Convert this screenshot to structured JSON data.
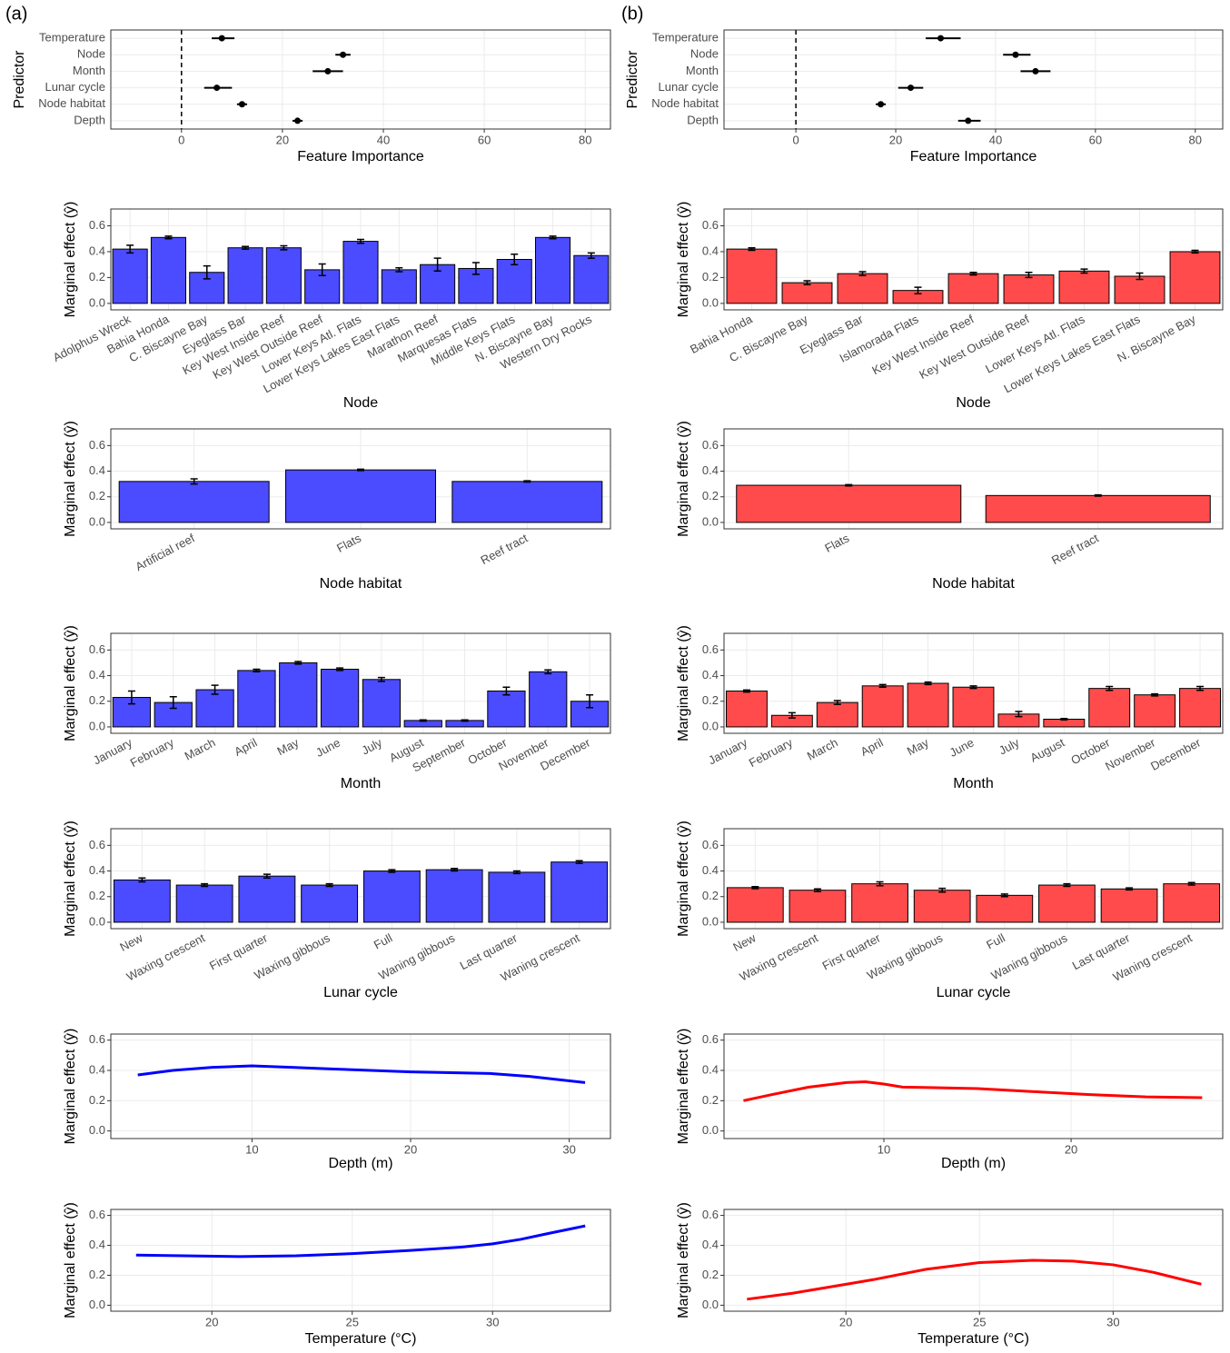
{
  "panel_labels": [
    "(a)",
    "(b)"
  ],
  "chart_data": [
    {
      "type": "dotplot",
      "x_label": "Feature Importance",
      "y_label": "Predictor",
      "categories": [
        "Temperature",
        "Node",
        "Month",
        "Lunar cycle",
        "Node habitat",
        "Depth"
      ],
      "values": [
        8,
        32,
        29,
        7,
        12,
        23
      ],
      "lower": [
        6,
        30.5,
        26,
        4.5,
        11,
        22
      ],
      "upper": [
        10.5,
        33.5,
        32,
        10,
        13,
        24
      ],
      "color": "#000000",
      "xlim": [
        -14,
        85
      ],
      "xticks": [
        0,
        20,
        40,
        60,
        80
      ],
      "reference_line": 0,
      "grid": true
    },
    {
      "type": "bar",
      "x_label": "Node",
      "y_label": "Marginal effect (ŷ)",
      "categories": [
        "Adolphus Wreck",
        "Bahia Honda",
        "C. Biscayne Bay",
        "Eyeglass Bar",
        "Key West Inside Reef",
        "Key West Outside Reef",
        "Lower Keys Atl. Flats",
        "Lower Keys Lakes East Flats",
        "Marathon Reef",
        "Marquesas Flats",
        "Middle Keys Flats",
        "N. Biscayne Bay",
        "Western Dry Rocks"
      ],
      "values": [
        0.42,
        0.51,
        0.24,
        0.43,
        0.43,
        0.26,
        0.48,
        0.26,
        0.3,
        0.27,
        0.34,
        0.51,
        0.37
      ],
      "errors": [
        0.03,
        0.01,
        0.05,
        0.01,
        0.015,
        0.045,
        0.015,
        0.015,
        0.05,
        0.045,
        0.04,
        0.01,
        0.02
      ],
      "color": "#4b4bff",
      "ylim": [
        -0.05,
        0.73
      ],
      "yticks": [
        {
          "value": 0,
          "label": "0.0"
        },
        0.2,
        0.4,
        0.6
      ],
      "grid": true
    },
    {
      "type": "bar",
      "x_label": "Node habitat",
      "y_label": "Marginal effect (ŷ)",
      "categories": [
        "Artificial reef",
        "Flats",
        "Reef tract"
      ],
      "values": [
        0.32,
        0.41,
        0.32
      ],
      "errors": [
        0.02,
        0.005,
        0.005
      ],
      "color": "#4b4bff",
      "ylim": [
        -0.05,
        0.73
      ],
      "yticks": [
        {
          "value": 0,
          "label": "0.0"
        },
        0.2,
        0.4,
        0.6
      ],
      "grid": true
    },
    {
      "type": "bar",
      "x_label": "Month",
      "y_label": "Marginal effect (ŷ)",
      "categories": [
        "January",
        "February",
        "March",
        "April",
        "May",
        "June",
        "July",
        "August",
        "September",
        "October",
        "November",
        "December"
      ],
      "values": [
        0.23,
        0.19,
        0.29,
        0.44,
        0.5,
        0.45,
        0.37,
        0.05,
        0.05,
        0.28,
        0.43,
        0.2
      ],
      "errors": [
        0.05,
        0.045,
        0.035,
        0.01,
        0.01,
        0.01,
        0.015,
        0.005,
        0.005,
        0.03,
        0.015,
        0.05
      ],
      "color": "#4b4bff",
      "ylim": [
        -0.05,
        0.73
      ],
      "yticks": [
        {
          "value": 0,
          "label": "0.0"
        },
        0.2,
        0.4,
        0.6
      ],
      "grid": true
    },
    {
      "type": "bar",
      "x_label": "Lunar cycle",
      "y_label": "Marginal effect (ŷ)",
      "categories": [
        "New",
        "Waxing crescent",
        "First quarter",
        "Waxing gibbous",
        "Full",
        "Waning gibbous",
        "Last quarter",
        "Waning crescent"
      ],
      "values": [
        0.33,
        0.29,
        0.36,
        0.29,
        0.4,
        0.41,
        0.39,
        0.47
      ],
      "errors": [
        0.015,
        0.01,
        0.015,
        0.01,
        0.01,
        0.01,
        0.01,
        0.01
      ],
      "color": "#4b4bff",
      "ylim": [
        -0.05,
        0.73
      ],
      "yticks": [
        {
          "value": 0,
          "label": "0.0"
        },
        0.2,
        0.4,
        0.6
      ],
      "grid": true
    },
    {
      "type": "line",
      "x_label": "Depth (m)",
      "y_label": "Marginal effect (ŷ)",
      "x": [
        2.8,
        5,
        7.5,
        10,
        12.5,
        15,
        17.5,
        20,
        22.5,
        25,
        27.5,
        31
      ],
      "values": [
        0.37,
        0.4,
        0.42,
        0.43,
        0.42,
        0.41,
        0.4,
        0.39,
        0.385,
        0.38,
        0.36,
        0.32
      ],
      "color": "#0000ff",
      "xlim": [
        1.1,
        32.6
      ],
      "xticks": [
        10,
        20,
        30
      ],
      "ylim": [
        -0.05,
        0.64
      ],
      "yticks": [
        {
          "value": 0,
          "label": "0.0"
        },
        0.2,
        0.4,
        0.6
      ],
      "grid": true
    },
    {
      "type": "line",
      "x_label": "Temperature (°C)",
      "y_label": "Marginal effect (ŷ)",
      "x": [
        17.3,
        19,
        21,
        23,
        25,
        27,
        29,
        30,
        31,
        32,
        33.3
      ],
      "values": [
        0.335,
        0.33,
        0.325,
        0.33,
        0.345,
        0.365,
        0.39,
        0.41,
        0.44,
        0.48,
        0.53
      ],
      "color": "#0000ff",
      "xlim": [
        16.4,
        34.2
      ],
      "xticks": [
        20,
        25,
        30
      ],
      "ylim": [
        -0.04,
        0.64
      ],
      "yticks": [
        {
          "value": 0,
          "label": "0.0"
        },
        0.2,
        0.4,
        0.6
      ],
      "grid": true
    },
    {
      "type": "dotplot",
      "x_label": "Feature Importance",
      "y_label": "Predictor",
      "categories": [
        "Temperature",
        "Node",
        "Month",
        "Lunar cycle",
        "Node habitat",
        "Depth"
      ],
      "values": [
        29,
        44,
        48,
        23,
        17,
        34.5
      ],
      "lower": [
        26,
        41.5,
        45,
        20.5,
        16,
        32.5
      ],
      "upper": [
        33,
        47,
        51,
        25.5,
        18,
        37
      ],
      "color": "#000000",
      "xlim": [
        -14.4,
        85.5
      ],
      "xticks": [
        0,
        20,
        40,
        60,
        80
      ],
      "reference_line": 0,
      "grid": true
    },
    {
      "type": "bar",
      "x_label": "Node",
      "y_label": "Marginal effect (ŷ)",
      "categories": [
        "Bahia Honda",
        "C. Biscayne Bay",
        "Eyeglass Bar",
        "Islamorada Flats",
        "Key West Inside Reef",
        "Key West Outside Reef",
        "Lower Keys Atl. Flats",
        "Lower Keys Lakes East Flats",
        "N. Biscayne Bay"
      ],
      "values": [
        0.42,
        0.16,
        0.23,
        0.1,
        0.23,
        0.22,
        0.25,
        0.21,
        0.4
      ],
      "errors": [
        0.01,
        0.015,
        0.015,
        0.025,
        0.01,
        0.02,
        0.015,
        0.025,
        0.01
      ],
      "color": "#ff4b4b",
      "ylim": [
        -0.05,
        0.73
      ],
      "yticks": [
        {
          "value": 0,
          "label": "0.0"
        },
        0.2,
        0.4,
        0.6
      ],
      "grid": true
    },
    {
      "type": "bar",
      "x_label": "Node habitat",
      "y_label": "Marginal effect (ŷ)",
      "categories": [
        "Flats",
        "Reef tract"
      ],
      "values": [
        0.29,
        0.21
      ],
      "errors": [
        0.005,
        0.005
      ],
      "color": "#ff4b4b",
      "ylim": [
        -0.05,
        0.73
      ],
      "yticks": [
        {
          "value": 0,
          "label": "0.0"
        },
        0.2,
        0.4,
        0.6
      ],
      "grid": true
    },
    {
      "type": "bar",
      "x_label": "Month",
      "y_label": "Marginal effect (ŷ)",
      "categories": [
        "January",
        "February",
        "March",
        "April",
        "May",
        "June",
        "July",
        "August",
        "October",
        "November",
        "December"
      ],
      "values": [
        0.28,
        0.09,
        0.19,
        0.32,
        0.34,
        0.31,
        0.1,
        0.06,
        0.3,
        0.25,
        0.3
      ],
      "errors": [
        0.008,
        0.02,
        0.015,
        0.01,
        0.01,
        0.01,
        0.02,
        0.005,
        0.015,
        0.008,
        0.015
      ],
      "color": "#ff4b4b",
      "ylim": [
        -0.05,
        0.73
      ],
      "yticks": [
        {
          "value": 0,
          "label": "0.0"
        },
        0.2,
        0.4,
        0.6
      ],
      "grid": true
    },
    {
      "type": "bar",
      "x_label": "Lunar cycle",
      "y_label": "Marginal effect (ŷ)",
      "categories": [
        "New",
        "Waxing crescent",
        "First quarter",
        "Waxing gibbous",
        "Full",
        "Waning gibbous",
        "Last quarter",
        "Waning crescent"
      ],
      "values": [
        0.27,
        0.25,
        0.3,
        0.25,
        0.21,
        0.29,
        0.26,
        0.3
      ],
      "errors": [
        0.008,
        0.01,
        0.015,
        0.015,
        0.01,
        0.01,
        0.008,
        0.01
      ],
      "color": "#ff4b4b",
      "ylim": [
        -0.05,
        0.73
      ],
      "yticks": [
        {
          "value": 0,
          "label": "0.0"
        },
        0.2,
        0.4,
        0.6
      ],
      "grid": true
    },
    {
      "type": "line",
      "x_label": "Depth (m)",
      "y_label": "Marginal effect (ŷ)",
      "x": [
        2.5,
        4,
        6,
        8,
        9,
        10,
        11,
        13,
        15,
        18,
        21,
        24,
        27
      ],
      "values": [
        0.2,
        0.24,
        0.29,
        0.32,
        0.325,
        0.31,
        0.29,
        0.285,
        0.28,
        0.26,
        0.24,
        0.225,
        0.22
      ],
      "color": "#ff0000",
      "xlim": [
        1.46,
        28.1
      ],
      "xticks": [
        10,
        20
      ],
      "ylim": [
        -0.05,
        0.64
      ],
      "yticks": [
        {
          "value": 0,
          "label": "0.0"
        },
        0.2,
        0.4,
        0.6
      ],
      "grid": true
    },
    {
      "type": "line",
      "x_label": "Temperature (°C)",
      "y_label": "Marginal effect (ŷ)",
      "x": [
        16.3,
        18,
        20,
        21,
        23,
        25,
        27,
        28.5,
        30,
        31.5,
        33.3
      ],
      "values": [
        0.04,
        0.08,
        0.14,
        0.17,
        0.24,
        0.285,
        0.3,
        0.295,
        0.27,
        0.22,
        0.14
      ],
      "color": "#ff0000",
      "xlim": [
        15.44,
        34.1
      ],
      "xticks": [
        20,
        25,
        30
      ],
      "ylim": [
        -0.04,
        0.64
      ],
      "yticks": [
        {
          "value": 0,
          "label": "0.0"
        },
        0.2,
        0.4,
        0.6
      ],
      "grid": true
    }
  ]
}
